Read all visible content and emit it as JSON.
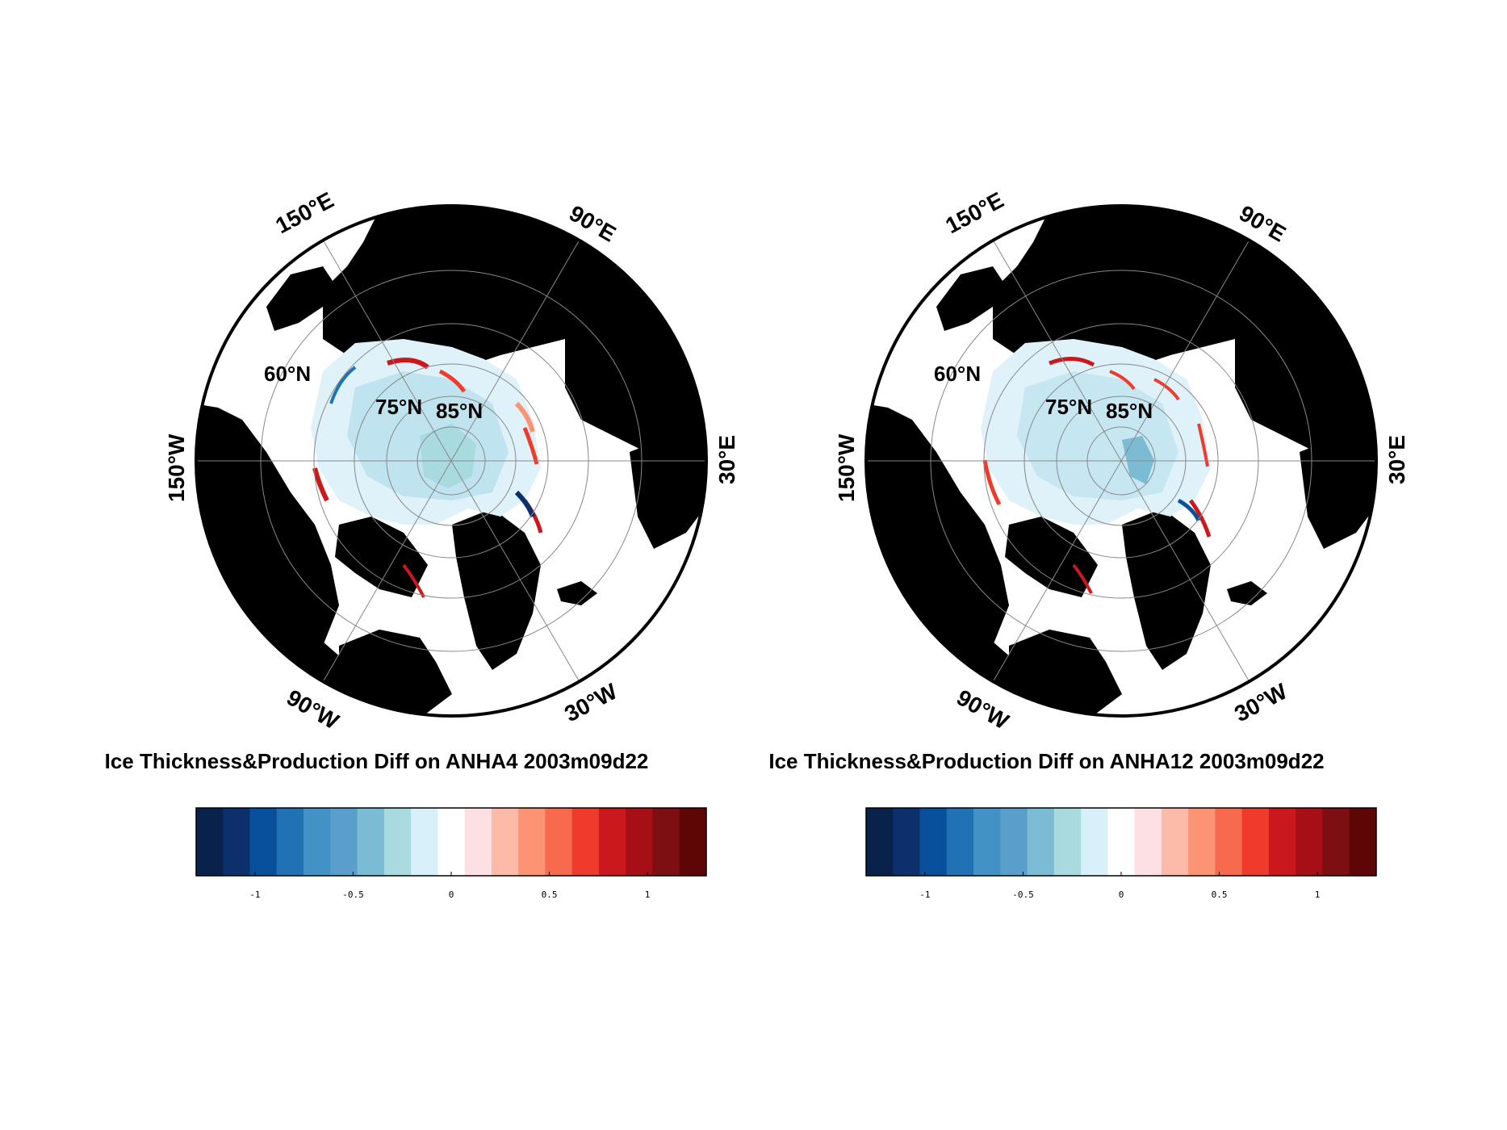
{
  "figure": {
    "panels": [
      {
        "title": "Ice Thickness&Production Diff on ANHA4 2003m09d22",
        "lon_labels": [
          "150°E",
          "90°E",
          "30°E",
          "30°W",
          "90°W",
          "150°W"
        ],
        "lat_labels": [
          "60°N",
          "75°N",
          "85°N"
        ],
        "colorbar": {
          "ticks": [
            "-1",
            "-0.5",
            "0",
            "0.5",
            "1"
          ],
          "range": [
            -1.3,
            1.3
          ]
        }
      },
      {
        "title": "Ice Thickness&Production Diff on ANHA12 2003m09d22",
        "lon_labels": [
          "150°E",
          "90°E",
          "30°E",
          "30°W",
          "90°W",
          "150°W"
        ],
        "lat_labels": [
          "60°N",
          "75°N",
          "85°N"
        ],
        "colorbar": {
          "ticks": [
            "-1",
            "-0.5",
            "0",
            "0.5",
            "1"
          ],
          "range": [
            -1.3,
            1.3
          ]
        }
      }
    ],
    "colormap": [
      "#08224b",
      "#0b306b",
      "#08509b",
      "#2171b5",
      "#4292c6",
      "#5a9fcc",
      "#7bbcd4",
      "#a8dae0",
      "#d7f0fa",
      "#ffffff",
      "#fde0e3",
      "#fcbba9",
      "#fc9374",
      "#f76a4e",
      "#ef3b2c",
      "#cb181d",
      "#a50f15",
      "#7d0e12",
      "#5e0505"
    ],
    "land_color": "#000000",
    "ocean_color": "#ffffff"
  }
}
